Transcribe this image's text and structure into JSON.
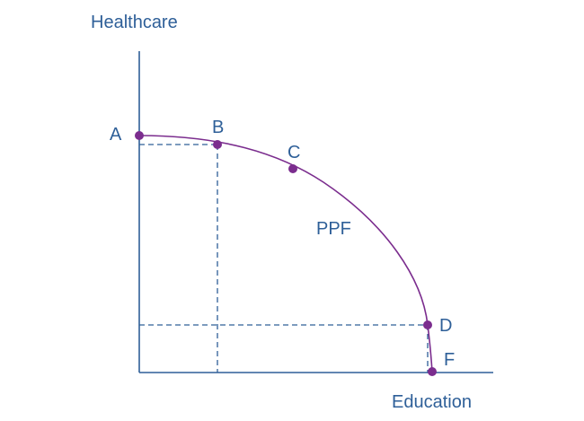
{
  "diagram": {
    "axes": {
      "y_label": "Healthcare",
      "x_label": "Education"
    },
    "curve_label": "PPF",
    "points": [
      {
        "id": "A",
        "label": "A"
      },
      {
        "id": "B",
        "label": "B"
      },
      {
        "id": "C",
        "label": "C"
      },
      {
        "id": "D",
        "label": "D"
      },
      {
        "id": "F",
        "label": "F"
      }
    ],
    "colors": {
      "axis": "#2e5f98",
      "text": "#2e5f98",
      "curve": "#7b2d8e",
      "points": "#7b2d8e"
    }
  }
}
